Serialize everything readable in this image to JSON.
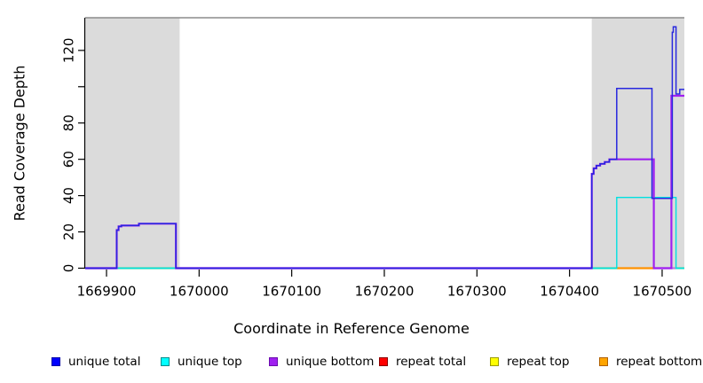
{
  "figure": {
    "background": "#ffffff",
    "plot_bg": "#ffffff"
  },
  "chart_data": {
    "type": "line",
    "subtype": "step-coverage",
    "title": "",
    "xlabel": "Coordinate in Reference Genome",
    "ylabel": "Read Coverage Depth",
    "xlim": [
      1669877,
      1670524
    ],
    "ylim": [
      0,
      138
    ],
    "grid": false,
    "legend_position": "bottom",
    "x_ticks": [
      1669900,
      1670000,
      1670100,
      1670200,
      1670300,
      1670400,
      1670500
    ],
    "y_ticks": [
      {
        "value": 0,
        "label": "0"
      },
      {
        "value": 20,
        "label": "20"
      },
      {
        "value": 40,
        "label": "40"
      },
      {
        "value": 60,
        "label": "60"
      },
      {
        "value": 80,
        "label": "80"
      },
      {
        "value": 100,
        "label": ""
      },
      {
        "value": 120,
        "label": "120"
      }
    ],
    "shaded_regions": [
      {
        "name": "repeat-region-left",
        "x1": 1669877,
        "x2": 1669979,
        "fill": "#DBDBDB"
      },
      {
        "name": "repeat-region-right",
        "x1": 1670424,
        "x2": 1670524,
        "fill": "#DBDBDB"
      }
    ],
    "top_boundary_line": {
      "y": 138,
      "color": "#8B8B8B"
    },
    "series": [
      {
        "name": "unique total",
        "color": "#2727DE",
        "width": 1.5,
        "points": [
          [
            1669877,
            0
          ],
          [
            1669911,
            0
          ],
          [
            1669911,
            21
          ],
          [
            1669913,
            21
          ],
          [
            1669913,
            23
          ],
          [
            1669916,
            23
          ],
          [
            1669916,
            23.5
          ],
          [
            1669935,
            23.5
          ],
          [
            1669935,
            24.5
          ],
          [
            1669975,
            24.5
          ],
          [
            1669975,
            0
          ],
          [
            1670424,
            0
          ],
          [
            1670424,
            52
          ],
          [
            1670426,
            52
          ],
          [
            1670426,
            55
          ],
          [
            1670429,
            55
          ],
          [
            1670429,
            56.5
          ],
          [
            1670433,
            56.5
          ],
          [
            1670433,
            57.5
          ],
          [
            1670438,
            57.5
          ],
          [
            1670438,
            58.5
          ],
          [
            1670443,
            58.5
          ],
          [
            1670443,
            60
          ],
          [
            1670451,
            60
          ],
          [
            1670451,
            99
          ],
          [
            1670489,
            99
          ],
          [
            1670489,
            38.5
          ],
          [
            1670511,
            38.5
          ],
          [
            1670511,
            130
          ],
          [
            1670512,
            130
          ],
          [
            1670512,
            133
          ],
          [
            1670515,
            133
          ],
          [
            1670515,
            96
          ],
          [
            1670519,
            96
          ],
          [
            1670519,
            98.5
          ],
          [
            1670524,
            98.5
          ]
        ]
      },
      {
        "name": "unique top",
        "color": "#00E0E0",
        "width": 1.4,
        "points": [
          [
            1669877,
            0
          ],
          [
            1670451,
            0
          ],
          [
            1670451,
            39
          ],
          [
            1670515,
            39
          ],
          [
            1670515,
            0
          ],
          [
            1670524,
            0
          ]
        ]
      },
      {
        "name": "unique bottom",
        "color": "#A020F0",
        "width": 2.2,
        "points": [
          [
            1669877,
            0
          ],
          [
            1669911,
            0
          ],
          [
            1669911,
            21
          ],
          [
            1669913,
            21
          ],
          [
            1669913,
            23
          ],
          [
            1669916,
            23
          ],
          [
            1669916,
            23.5
          ],
          [
            1669935,
            23.5
          ],
          [
            1669935,
            24.5
          ],
          [
            1669975,
            24.5
          ],
          [
            1669975,
            0
          ],
          [
            1670424,
            0
          ],
          [
            1670424,
            52
          ],
          [
            1670426,
            52
          ],
          [
            1670426,
            55
          ],
          [
            1670429,
            55
          ],
          [
            1670429,
            56.5
          ],
          [
            1670433,
            56.5
          ],
          [
            1670433,
            57.5
          ],
          [
            1670438,
            57.5
          ],
          [
            1670438,
            58.5
          ],
          [
            1670443,
            58.5
          ],
          [
            1670443,
            60
          ],
          [
            1670491,
            60
          ],
          [
            1670491,
            0
          ],
          [
            1670510,
            0
          ],
          [
            1670510,
            95
          ],
          [
            1670524,
            95
          ]
        ]
      },
      {
        "name": "repeat total",
        "color": "#DD0000",
        "width": 1.2,
        "points": [
          [
            1669877,
            0
          ],
          [
            1670524,
            0
          ]
        ]
      },
      {
        "name": "repeat top",
        "color": "#FFFF00",
        "width": 1.2,
        "points": [
          [
            1669877,
            0
          ],
          [
            1670524,
            0
          ]
        ]
      },
      {
        "name": "repeat bottom",
        "color": "#FF9100",
        "width": 2.0,
        "points": [
          [
            1669877,
            0
          ],
          [
            1670524,
            0
          ]
        ]
      }
    ],
    "draw_order": [
      "repeat total",
      "repeat top",
      "repeat bottom",
      "unique top",
      "unique bottom",
      "unique total"
    ],
    "zero_line_segments": [
      {
        "x1": 1669877,
        "x2": 1669911,
        "color": "#4537E3"
      },
      {
        "x1": 1669911,
        "x2": 1669975,
        "color": "#70D592"
      },
      {
        "x1": 1669975,
        "x2": 1670424,
        "color": "#4537E3"
      },
      {
        "x1": 1670424,
        "x2": 1670451,
        "color": "#70D592"
      },
      {
        "x1": 1670451,
        "x2": 1670491,
        "color": "#FF9100"
      },
      {
        "x1": 1670491,
        "x2": 1670515,
        "color": "#BA7FD8"
      },
      {
        "x1": 1670515,
        "x2": 1670524,
        "color": "#70D592"
      }
    ]
  },
  "legend": {
    "items": [
      {
        "label": "unique total",
        "fill": "#0000FF",
        "border": "#0000A8"
      },
      {
        "label": "unique top",
        "fill": "#00FFFF",
        "border": "#008B8B"
      },
      {
        "label": "unique bottom",
        "fill": "#A020F0",
        "border": "#6A0DAD"
      },
      {
        "label": "repeat total",
        "fill": "#FF0000",
        "border": "#8B0000"
      },
      {
        "label": "repeat top",
        "fill": "#FFFF00",
        "border": "#9B9B00"
      },
      {
        "label": "repeat bottom",
        "fill": "#FFA500",
        "border": "#B06000"
      }
    ]
  }
}
